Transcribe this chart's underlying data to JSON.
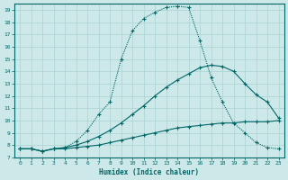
{
  "xlabel": "Humidex (Indice chaleur)",
  "xlim": [
    -0.5,
    23.5
  ],
  "ylim": [
    7,
    19.5
  ],
  "xticks": [
    0,
    1,
    2,
    3,
    4,
    5,
    6,
    7,
    8,
    9,
    10,
    11,
    12,
    13,
    14,
    15,
    16,
    17,
    18,
    19,
    20,
    21,
    22,
    23
  ],
  "yticks": [
    7,
    8,
    9,
    10,
    11,
    12,
    13,
    14,
    15,
    16,
    17,
    18,
    19
  ],
  "bg_color": "#cce8e8",
  "grid_color": "#b0d4d4",
  "line_color": "#006666",
  "line1_x": [
    0,
    1,
    2,
    3,
    4,
    5,
    6,
    7,
    8,
    9,
    10,
    11,
    12,
    13,
    14,
    15,
    16,
    17,
    18,
    19,
    20,
    21,
    22,
    23
  ],
  "line1_y": [
    7.7,
    7.7,
    7.5,
    7.7,
    7.7,
    7.8,
    7.9,
    8.0,
    8.2,
    8.4,
    8.6,
    8.8,
    9.0,
    9.2,
    9.4,
    9.5,
    9.6,
    9.7,
    9.8,
    9.8,
    9.9,
    9.9,
    9.9,
    10.0
  ],
  "line2_x": [
    0,
    1,
    2,
    3,
    4,
    5,
    6,
    7,
    8,
    9,
    10,
    11,
    12,
    13,
    14,
    15,
    16,
    17,
    18,
    19,
    20,
    21,
    22,
    23
  ],
  "line2_y": [
    7.7,
    7.7,
    7.5,
    7.7,
    7.8,
    8.0,
    8.3,
    8.7,
    9.2,
    9.8,
    10.5,
    11.2,
    12.0,
    12.7,
    13.3,
    13.8,
    14.3,
    14.5,
    14.4,
    14.0,
    13.0,
    12.1,
    11.5,
    10.2
  ],
  "line3_x": [
    0,
    1,
    2,
    3,
    4,
    5,
    6,
    7,
    8,
    9,
    10,
    11,
    12,
    13,
    14,
    15,
    16,
    17,
    18,
    19,
    20,
    21,
    22,
    23
  ],
  "line3_y": [
    7.7,
    7.7,
    7.5,
    7.7,
    7.8,
    8.3,
    9.2,
    10.5,
    11.5,
    15.0,
    17.3,
    18.3,
    18.8,
    19.2,
    19.3,
    19.2,
    16.5,
    13.5,
    11.5,
    9.8,
    9.0,
    8.2,
    7.8,
    7.7
  ]
}
